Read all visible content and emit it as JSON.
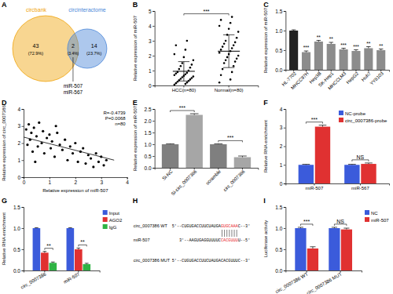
{
  "chart_data": [
    {
      "panel_label": "A",
      "type": "venn",
      "sets": [
        {
          "name": "circbank",
          "count": 43,
          "percent": 72.9,
          "percent_label": "(72.9%)",
          "color": "#f0a30a"
        },
        {
          "name": "circinteractome",
          "count": 14,
          "percent": 23.7,
          "percent_label": "(23.7%)",
          "color": "#4a86d8"
        }
      ],
      "overlap": {
        "count": 2,
        "percent": 3.4,
        "percent_label": "(3.4%)",
        "members": [
          "miR-507",
          "miR-567"
        ]
      }
    },
    {
      "panel_label": "B",
      "type": "dot",
      "categories": [
        "HCC(n=80)",
        "Normal(n=80)"
      ],
      "values": [
        [
          0.05,
          0.1,
          0.15,
          0.2,
          0.25,
          0.3,
          0.35,
          0.4,
          0.45,
          0.5,
          0.55,
          0.6,
          0.65,
          0.7,
          0.75,
          0.8,
          0.85,
          0.9,
          1.0,
          1.1,
          1.2,
          1.3,
          1.4,
          1.5,
          1.7,
          1.9,
          2.1,
          2.4,
          2.7,
          3.0
        ],
        [
          0.2,
          0.4,
          0.7,
          0.9,
          1.1,
          1.3,
          1.5,
          1.6,
          1.7,
          1.8,
          1.9,
          2.0,
          2.1,
          2.2,
          2.3,
          2.4,
          2.5,
          2.6,
          2.7,
          2.8,
          2.9,
          3.0,
          3.2,
          3.4,
          3.6,
          3.8,
          4.0,
          4.2,
          4.4,
          4.6
        ]
      ],
      "means": [
        0.95,
        2.3
      ],
      "errors": [
        0.65,
        1.1
      ],
      "ylabel": "Relative expression of miR-507",
      "ylim": [
        0,
        5
      ],
      "yticks": [
        0,
        1,
        2,
        3,
        4,
        5
      ],
      "significance": "***"
    },
    {
      "panel_label": "C",
      "type": "bar",
      "categories": [
        "HL-7702",
        "MHCC97H",
        "Hep3B",
        "SK-Hep1",
        "MHCCLM3",
        "HepG2",
        "Huh7",
        "YY8103"
      ],
      "values": [
        1.0,
        0.45,
        0.72,
        0.66,
        0.52,
        0.48,
        0.55,
        0.5
      ],
      "errors": [
        0.02,
        0.03,
        0.03,
        0.04,
        0.03,
        0.03,
        0.04,
        0.03
      ],
      "colors": [
        "#222222",
        "#8c8c8c",
        "#8c8c8c",
        "#8c8c8c",
        "#8c8c8c",
        "#8c8c8c",
        "#8c8c8c",
        "#8c8c8c"
      ],
      "significance": [
        null,
        "***",
        "**",
        "**",
        "***",
        "***",
        "**",
        "**"
      ],
      "ylabel": "Relative expression of miR-507",
      "ylim": [
        0,
        1.5
      ],
      "yticks": [
        {
          "value": 0,
          "label": "0.0"
        },
        0.5,
        {
          "value": 1,
          "label": "1.0"
        },
        1.5
      ]
    },
    {
      "panel_label": "D",
      "type": "scatter",
      "x": [
        0.1,
        0.15,
        0.2,
        0.25,
        0.3,
        0.35,
        0.4,
        0.5,
        0.55,
        0.6,
        0.7,
        0.75,
        0.8,
        0.9,
        1.0,
        1.05,
        1.1,
        1.2,
        1.3,
        1.4,
        1.5,
        1.6,
        1.7,
        1.8,
        1.9,
        2.0,
        2.1,
        2.2,
        2.3,
        2.4,
        2.5,
        2.6,
        2.7,
        2.8,
        2.9,
        3.0,
        3.1,
        3.2,
        1.25,
        0.45
      ],
      "y": [
        2.8,
        1.9,
        3.1,
        2.2,
        2.6,
        1.5,
        2.9,
        2.4,
        1.8,
        3.2,
        2.0,
        2.7,
        1.4,
        2.3,
        2.5,
        1.7,
        2.1,
        1.2,
        2.6,
        1.9,
        1.6,
        2.2,
        1.0,
        1.8,
        1.4,
        2.0,
        0.9,
        1.5,
        1.7,
        0.8,
        1.3,
        1.1,
        0.6,
        1.4,
        0.9,
        1.2,
        0.7,
        1.0,
        3.0,
        0.9
      ],
      "fit": {
        "x": [
          0,
          3.5
        ],
        "y": [
          2.35,
          1.0
        ]
      },
      "annotations": [
        "R=-0.4739",
        "P=0.0068",
        "n=80"
      ],
      "xlabel": "Relative expression of miR-507",
      "ylabel": "Relative expression of circ_0007386",
      "xlim": [
        0,
        4
      ],
      "xticks": [
        0,
        1,
        2,
        3,
        4
      ],
      "ylim": [
        0,
        4
      ],
      "yticks": [
        0,
        1,
        2,
        3,
        4
      ]
    },
    {
      "panel_label": "E",
      "type": "bar",
      "categories": [
        "Si-NC",
        "Si-circ_0007386",
        "scramble",
        "circ_0007386"
      ],
      "values": [
        1.0,
        2.25,
        1.0,
        0.45
      ],
      "errors": [
        0.02,
        0.05,
        0.02,
        0.05
      ],
      "colors": [
        "#7f7f7f",
        "#a6a6a6",
        "#7f7f7f",
        "#a6a6a6"
      ],
      "comparison_significance": [
        null,
        "***",
        null,
        "***"
      ],
      "ylabel": "Relative expression of miR-507",
      "ylim": [
        0,
        2.5
      ],
      "yticks": [
        {
          "value": 0,
          "label": "0.0"
        },
        0.5,
        {
          "value": 1,
          "label": "1.0"
        },
        1.5,
        {
          "value": 2,
          "label": "2.0"
        },
        2.5
      ]
    },
    {
      "panel_label": "F",
      "type": "bar",
      "categories": [
        "miR-507",
        "miR-567"
      ],
      "series": [
        {
          "name": "NC-probe",
          "color": "#3b5bdb",
          "values": [
            1.0,
            1.0
          ],
          "errors": [
            0.03,
            0.03
          ]
        },
        {
          "name": "circ_0007386-probe",
          "color": "#e03131",
          "values": [
            3.05,
            1.05
          ],
          "errors": [
            0.08,
            0.05
          ]
        }
      ],
      "significance": [
        "***",
        "NS"
      ],
      "legend": "top-right",
      "ylabel": "Relative RNA enrichment",
      "ylim": [
        0,
        4
      ],
      "yticks": [
        0,
        1,
        2,
        3,
        4
      ]
    },
    {
      "panel_label": "G",
      "type": "bar",
      "categories": [
        "circ_0007386",
        "miR-507"
      ],
      "series": [
        {
          "name": "Input",
          "color": "#3b5bdb",
          "values": [
            1.0,
            1.0
          ],
          "errors": [
            0.01,
            0.01
          ]
        },
        {
          "name": "AGO2",
          "color": "#e03131",
          "values": [
            0.42,
            0.5
          ],
          "errors": [
            0.03,
            0.03
          ]
        },
        {
          "name": "IgG",
          "color": "#2fb344",
          "values": [
            0.18,
            0.15
          ],
          "errors": [
            0.02,
            0.02
          ]
        }
      ],
      "significance": [
        "**",
        "**"
      ],
      "legend": "right",
      "ylabel": "Relative RNA enrichment",
      "ylim": [
        0,
        1.5
      ],
      "yticks": [
        {
          "value": 0,
          "label": "0.0"
        },
        0.5,
        {
          "value": 1,
          "label": "1.0"
        },
        1.5
      ]
    },
    {
      "panel_label": "H",
      "type": "sequence",
      "rows": [
        {
          "label": "circ_0007386 WT",
          "prefix": "5'--CUGUGACCUUCUAUGA",
          "highlight": "GUGCAAA",
          "suffix": "C--3'"
        },
        {
          "label": "miR-507",
          "prefix": "3'--AAGUGAGGUUUUC",
          "highlight": "CACGUUU",
          "suffix": "U--5'"
        },
        {
          "label": "circ_0007386 MUT",
          "prefix": "5'--CUGUGACCUUCUAUGACACGUUUC--3'"
        }
      ]
    },
    {
      "panel_label": "I",
      "type": "bar",
      "categories": [
        "circ_0007386 WT",
        "circ_0007386 MUT"
      ],
      "series": [
        {
          "name": "NC",
          "color": "#3b5bdb",
          "values": [
            1.0,
            1.0
          ],
          "errors": [
            0.02,
            0.02
          ]
        },
        {
          "name": "miR-507",
          "color": "#e03131",
          "values": [
            0.52,
            0.97
          ],
          "errors": [
            0.04,
            0.03
          ]
        }
      ],
      "significance": [
        "***",
        "NS"
      ],
      "legend": "right",
      "ylabel": "Luciferase activity",
      "ylim": [
        0,
        1.5
      ],
      "yticks": [
        {
          "value": 0,
          "label": "0.0"
        },
        0.5,
        {
          "value": 1,
          "label": "1.0"
        },
        1.5
      ]
    }
  ]
}
